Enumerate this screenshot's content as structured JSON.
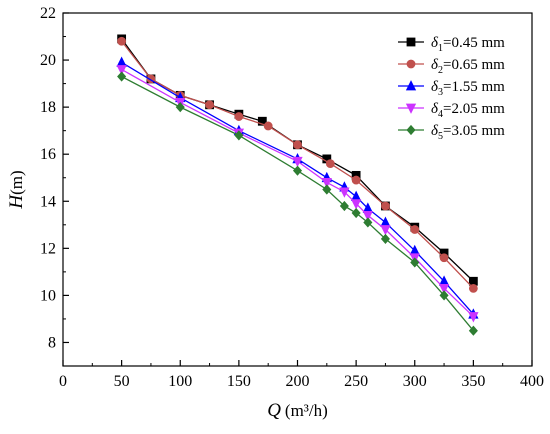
{
  "chart_data": {
    "type": "line",
    "xlabel": {
      "symbol": "Q",
      "unit": "(m³/h)"
    },
    "ylabel": {
      "symbol": "H",
      "unit": "(m)"
    },
    "xlim": [
      0,
      400
    ],
    "ylim": [
      7,
      22
    ],
    "xticks": [
      "0",
      "50",
      "100",
      "150",
      "200",
      "250",
      "300",
      "350",
      "400"
    ],
    "yticks": [
      "8",
      "10",
      "12",
      "14",
      "16",
      "18",
      "20",
      "22"
    ],
    "grid": false,
    "legend_position": "top-right",
    "series": [
      {
        "name": "δ1=0.45 mm",
        "label": {
          "sym": "δ",
          "sub": "1",
          "rest": "=0.45 mm"
        },
        "color": "#000000",
        "marker": "square",
        "x": [
          50,
          75,
          100,
          125,
          150,
          170,
          200,
          225,
          250,
          275,
          300,
          325,
          350
        ],
        "y": [
          20.9,
          19.2,
          18.5,
          18.1,
          17.7,
          17.4,
          16.4,
          15.8,
          15.1,
          13.8,
          12.9,
          11.8,
          10.6
        ]
      },
      {
        "name": "δ2=0.65 mm",
        "label": {
          "sym": "δ",
          "sub": "2",
          "rest": "=0.65 mm"
        },
        "color": "#c0504d",
        "marker": "circle",
        "x": [
          50,
          75,
          100,
          125,
          150,
          175,
          200,
          228,
          250,
          275,
          300,
          325,
          350
        ],
        "y": [
          20.8,
          19.2,
          18.5,
          18.1,
          17.6,
          17.2,
          16.4,
          15.6,
          14.9,
          13.8,
          12.8,
          11.6,
          10.3
        ]
      },
      {
        "name": "δ3=1.55 mm",
        "label": {
          "sym": "δ",
          "sub": "3",
          "rest": "=1.55 mm"
        },
        "color": "#0000ff",
        "marker": "triangle-up",
        "x": [
          50,
          100,
          150,
          200,
          225,
          240,
          250,
          260,
          275,
          300,
          325,
          350
        ],
        "y": [
          19.9,
          18.4,
          17.0,
          15.8,
          15.0,
          14.6,
          14.2,
          13.7,
          13.1,
          11.9,
          10.6,
          9.2
        ]
      },
      {
        "name": "δ4=2.05 mm",
        "label": {
          "sym": "δ",
          "sub": "4",
          "rest": "=2.05 mm"
        },
        "color": "#cc33ff",
        "marker": "triangle-down",
        "x": [
          50,
          100,
          150,
          200,
          225,
          240,
          250,
          260,
          275,
          300,
          325,
          350
        ],
        "y": [
          19.6,
          18.2,
          16.9,
          15.7,
          14.8,
          14.4,
          13.9,
          13.4,
          12.8,
          11.6,
          10.3,
          9.1
        ]
      },
      {
        "name": "δ5=3.05 mm",
        "label": {
          "sym": "δ",
          "sub": "5",
          "rest": "=3.05 mm"
        },
        "color": "#2e7d32",
        "marker": "diamond",
        "x": [
          50,
          100,
          150,
          200,
          225,
          240,
          250,
          260,
          275,
          300,
          325,
          350
        ],
        "y": [
          19.3,
          18.0,
          16.8,
          15.3,
          14.5,
          13.8,
          13.5,
          13.1,
          12.4,
          11.4,
          10.0,
          8.5
        ]
      }
    ]
  }
}
